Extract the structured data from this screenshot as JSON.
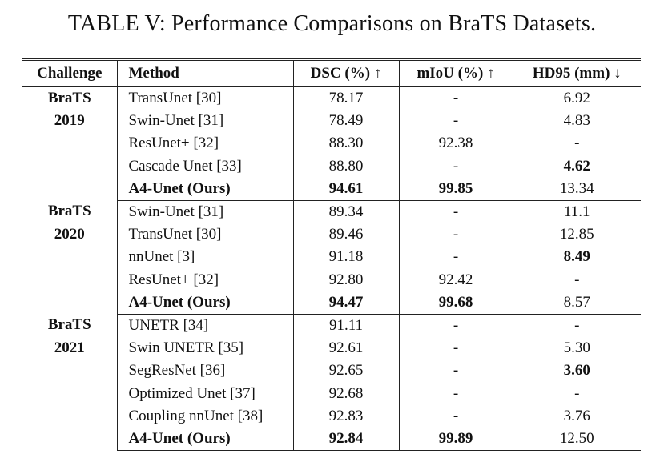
{
  "caption": "TABLE V: Performance Comparisons on BraTS Datasets.",
  "headers": {
    "challenge": "Challenge",
    "method": "Method",
    "dsc": "DSC (%)",
    "dsc_arrow": "↑",
    "miou": "mIoU (%)",
    "miou_arrow": "↑",
    "hd95": "HD95 (mm)",
    "hd95_arrow": "↓"
  },
  "groups": [
    {
      "challenge_line1": "BraTS",
      "challenge_line2": "2019",
      "rows": [
        {
          "method": "TransUnet [30]",
          "dsc": "78.17",
          "miou": "-",
          "hd95": "6.92"
        },
        {
          "method": "Swin-Unet [31]",
          "dsc": "78.49",
          "miou": "-",
          "hd95": "4.83"
        },
        {
          "method": "ResUnet+ [32]",
          "dsc": "88.30",
          "miou": "92.38",
          "hd95": "-"
        },
        {
          "method": "Cascade Unet [33]",
          "dsc": "88.80",
          "miou": "-",
          "hd95": "4.62"
        },
        {
          "method": "A4-Unet (Ours)",
          "dsc": "94.61",
          "miou": "99.85",
          "hd95": "13.34"
        }
      ]
    },
    {
      "challenge_line1": "BraTS",
      "challenge_line2": "2020",
      "rows": [
        {
          "method": "Swin-Unet [31]",
          "dsc": "89.34",
          "miou": "-",
          "hd95": "11.1"
        },
        {
          "method": "TransUnet [30]",
          "dsc": "89.46",
          "miou": "-",
          "hd95": "12.85"
        },
        {
          "method": "nnUnet [3]",
          "dsc": "91.18",
          "miou": "-",
          "hd95": "8.49"
        },
        {
          "method": "ResUnet+ [32]",
          "dsc": "92.80",
          "miou": "92.42",
          "hd95": "-"
        },
        {
          "method": "A4-Unet (Ours)",
          "dsc": "94.47",
          "miou": "99.68",
          "hd95": "8.57"
        }
      ]
    },
    {
      "challenge_line1": "BraTS",
      "challenge_line2": "2021",
      "rows": [
        {
          "method": "UNETR [34]",
          "dsc": "91.11",
          "miou": "-",
          "hd95": "-"
        },
        {
          "method": "Swin UNETR [35]",
          "dsc": "92.61",
          "miou": "-",
          "hd95": "5.30"
        },
        {
          "method": "SegResNet [36]",
          "dsc": "92.65",
          "miou": "-",
          "hd95": "3.60"
        },
        {
          "method": "Optimized Unet [37]",
          "dsc": "92.68",
          "miou": "-",
          "hd95": "-"
        },
        {
          "method": "Coupling nnUnet [38]",
          "dsc": "92.83",
          "miou": "-",
          "hd95": "3.76"
        },
        {
          "method": "A4-Unet (Ours)",
          "dsc": "92.84",
          "miou": "99.89",
          "hd95": "12.50"
        }
      ]
    }
  ]
}
